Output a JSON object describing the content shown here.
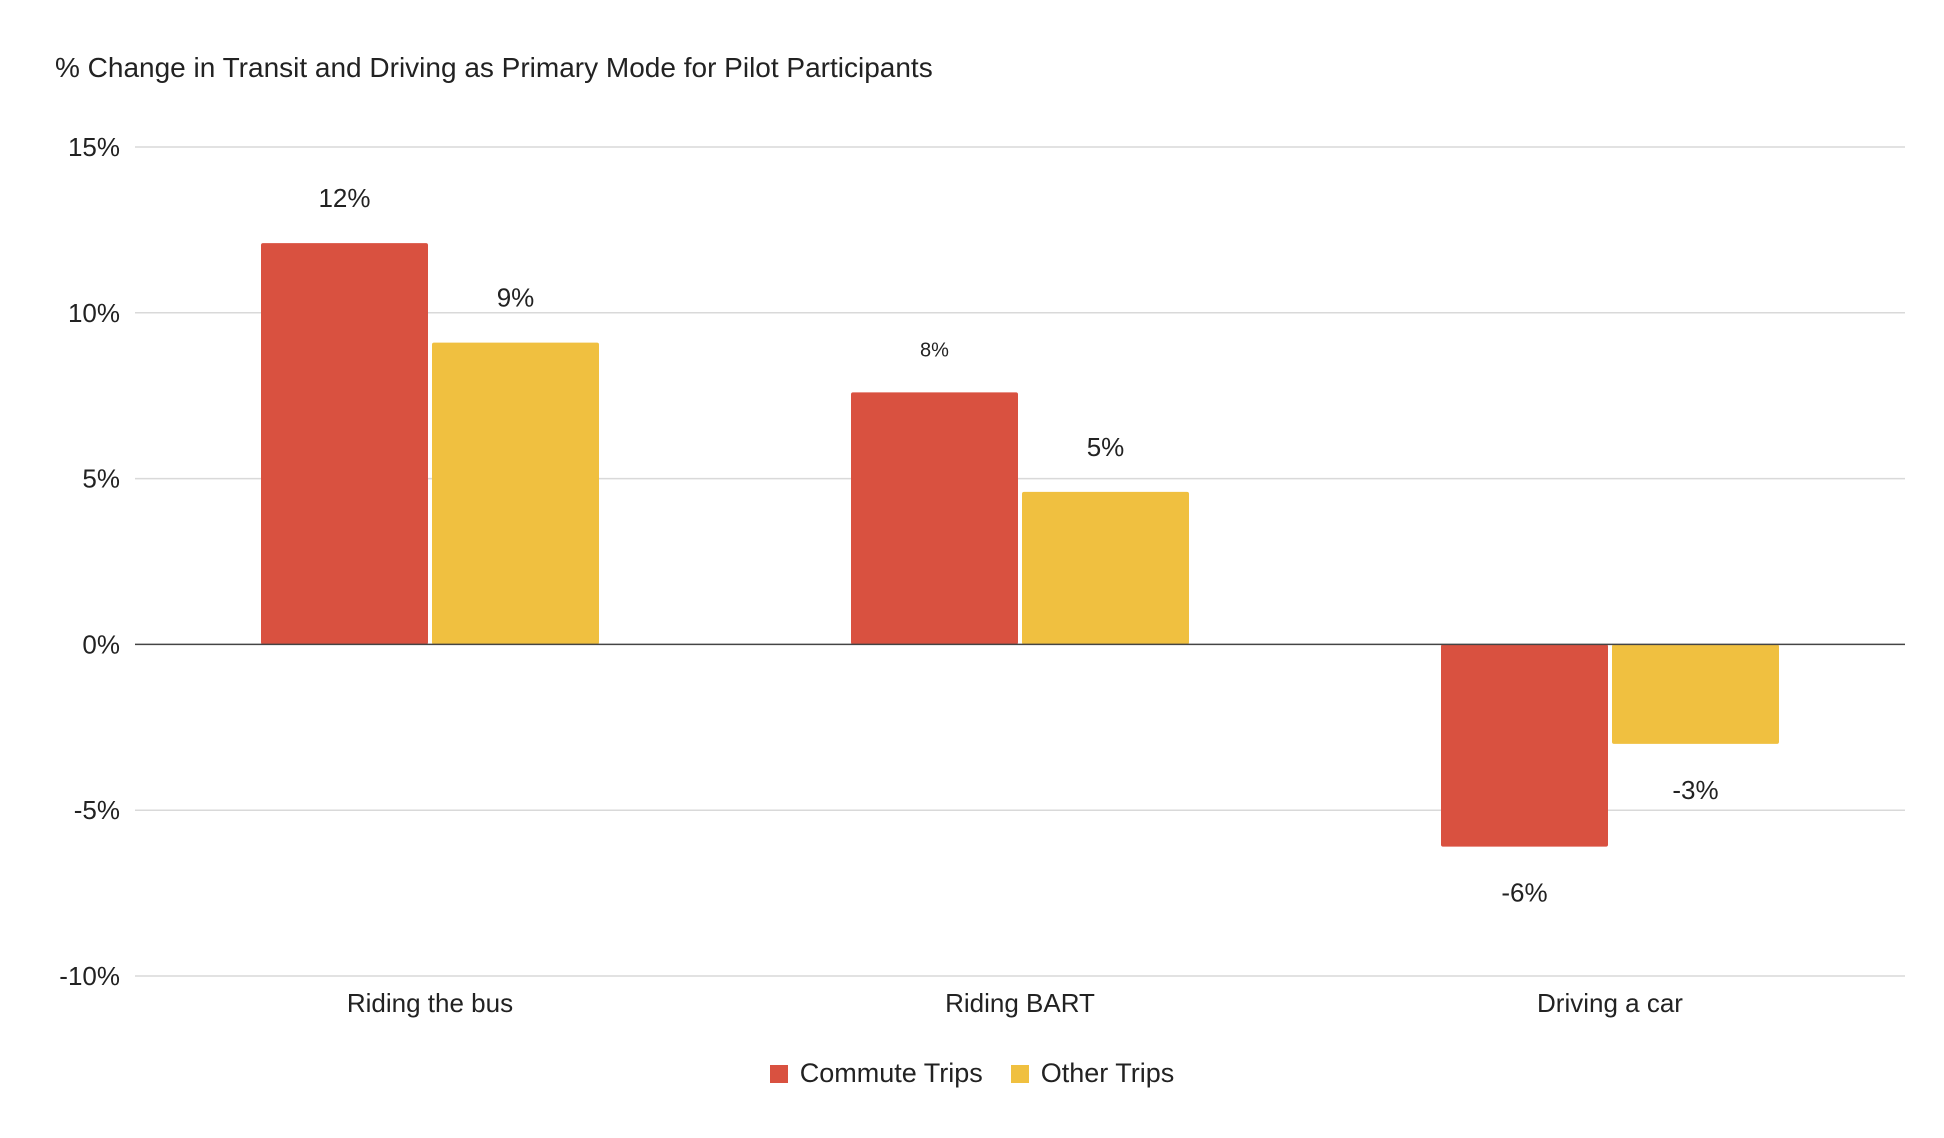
{
  "chart_data": {
    "type": "bar",
    "title": "% Change in Transit and Driving as Primary Mode for Pilot Participants",
    "categories": [
      "Riding the bus",
      "Riding BART",
      "Driving a car"
    ],
    "series": [
      {
        "name": "Commute Trips",
        "color": "#d95140",
        "values": [
          12.1,
          7.6,
          -6.1
        ],
        "labels": [
          "12%",
          "8%",
          "-6%"
        ]
      },
      {
        "name": "Other Trips",
        "color": "#f0c040",
        "values": [
          9.1,
          4.6,
          -3.0
        ],
        "labels": [
          "9%",
          "5%",
          "-3%"
        ]
      }
    ],
    "ylim": [
      -10,
      15
    ],
    "yticks": [
      15,
      10,
      5,
      0,
      -5,
      -10
    ],
    "ytick_labels": [
      "15%",
      "10%",
      "5%",
      "0%",
      "-5%",
      "-10%"
    ],
    "grid": true,
    "legend_position": "bottom"
  }
}
